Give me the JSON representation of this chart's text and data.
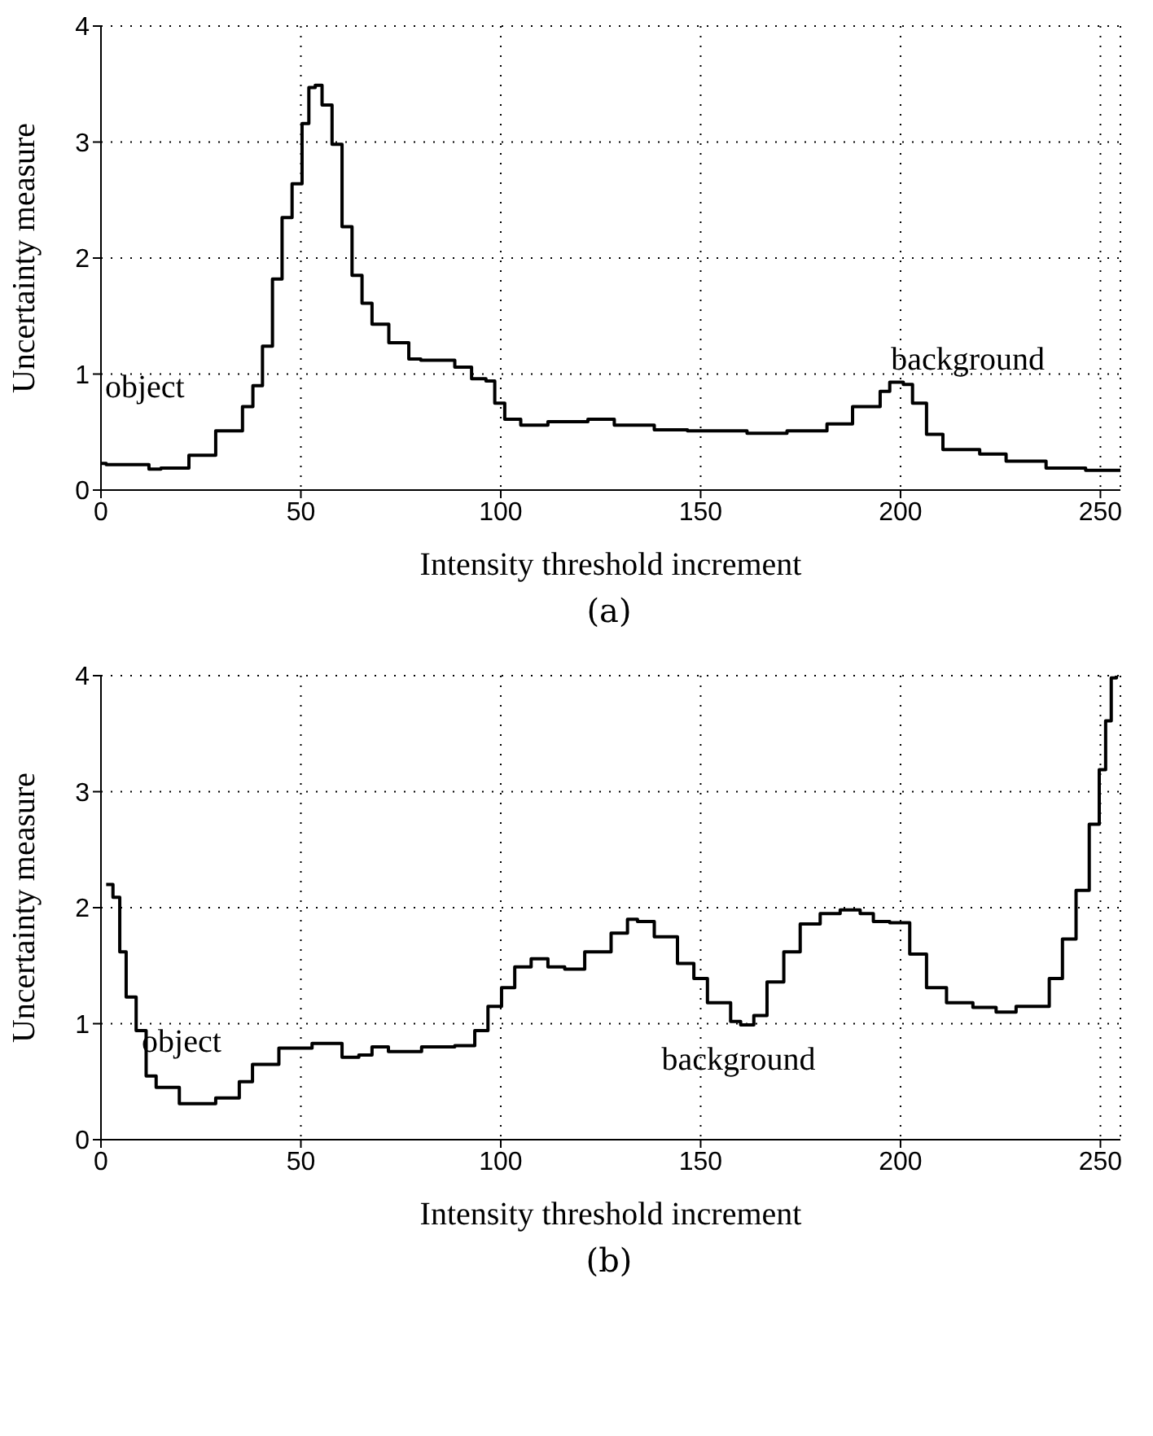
{
  "chart_data": [
    {
      "type": "step",
      "xlabel": "Intensity threshold increment",
      "ylabel": "Uncertainty measure",
      "color": "#000000",
      "grid": true,
      "xlim": [
        0,
        255
      ],
      "ylim": [
        0,
        4
      ],
      "xticks": [
        0,
        50,
        100,
        150,
        200,
        250
      ],
      "yticks": [
        0,
        1,
        2,
        3,
        4
      ],
      "annotations": [
        "object",
        "background",
        "(a)"
      ],
      "x": [
        0,
        1.3,
        12,
        15,
        22,
        28.7,
        35.4,
        38,
        40.4,
        42.9,
        45.3,
        47.8,
        50.3,
        52,
        53.6,
        55.3,
        57.8,
        60.3,
        62.8,
        65.3,
        67.8,
        72,
        77,
        80,
        88.5,
        92.7,
        96.3,
        98.5,
        101,
        105,
        111.8,
        121.8,
        128.4,
        138.4,
        146.7,
        161.6,
        171.6,
        181.6,
        188,
        194.9,
        197.3,
        200.7,
        203,
        206.5,
        210.6,
        219.8,
        226.4,
        236.4,
        246.3,
        253.8,
        255
      ],
      "values": [
        0.23,
        0.22,
        0.18,
        0.19,
        0.3,
        0.51,
        0.72,
        0.9,
        1.24,
        1.82,
        2.35,
        2.64,
        3.16,
        3.47,
        3.49,
        3.32,
        2.98,
        2.27,
        1.85,
        1.61,
        1.43,
        1.27,
        1.13,
        1.12,
        1.06,
        0.96,
        0.94,
        0.75,
        0.61,
        0.56,
        0.59,
        0.61,
        0.56,
        0.52,
        0.51,
        0.49,
        0.51,
        0.57,
        0.72,
        0.85,
        0.93,
        0.91,
        0.75,
        0.48,
        0.35,
        0.31,
        0.25,
        0.19,
        0.17,
        0.17,
        0.17
      ]
    },
    {
      "type": "step",
      "xlabel": "Intensity threshold increment",
      "ylabel": "Uncertainty measure",
      "color": "#000000",
      "grid": true,
      "xlim": [
        0,
        255
      ],
      "ylim": [
        0,
        4
      ],
      "xticks": [
        0,
        50,
        100,
        150,
        200,
        250
      ],
      "yticks": [
        0,
        1,
        2,
        3,
        4
      ],
      "annotations": [
        "object",
        "background",
        "(b)"
      ],
      "x": [
        1.3,
        3,
        4.7,
        6.3,
        8.8,
        11.3,
        13.8,
        19.6,
        28.7,
        34.6,
        37.9,
        44.5,
        52.8,
        60.3,
        64.5,
        67.8,
        71.9,
        80.2,
        88.5,
        93.5,
        96.8,
        100.2,
        103.5,
        107.6,
        111.8,
        116,
        121,
        127.6,
        131.7,
        134.2,
        138.4,
        144.2,
        148.3,
        151.7,
        157.5,
        160,
        163.3,
        166.6,
        170.8,
        174.9,
        179.9,
        184.9,
        189.9,
        193.2,
        197.3,
        202.3,
        206.5,
        211.5,
        218.1,
        223.9,
        228.9,
        237.2,
        240.5,
        243.9,
        247.2,
        249.7,
        251.3,
        252.7,
        254
      ],
      "values": [
        2.2,
        2.09,
        1.62,
        1.23,
        0.94,
        0.55,
        0.45,
        0.31,
        0.36,
        0.5,
        0.65,
        0.79,
        0.83,
        0.71,
        0.73,
        0.8,
        0.76,
        0.8,
        0.81,
        0.94,
        1.15,
        1.31,
        1.49,
        1.56,
        1.49,
        1.47,
        1.62,
        1.78,
        1.9,
        1.88,
        1.75,
        1.52,
        1.39,
        1.18,
        1.02,
        0.99,
        1.07,
        1.36,
        1.62,
        1.86,
        1.95,
        1.98,
        1.95,
        1.88,
        1.87,
        1.6,
        1.31,
        1.18,
        1.14,
        1.1,
        1.15,
        1.39,
        1.73,
        2.15,
        2.72,
        3.19,
        3.61,
        3.98,
        4
      ]
    }
  ]
}
